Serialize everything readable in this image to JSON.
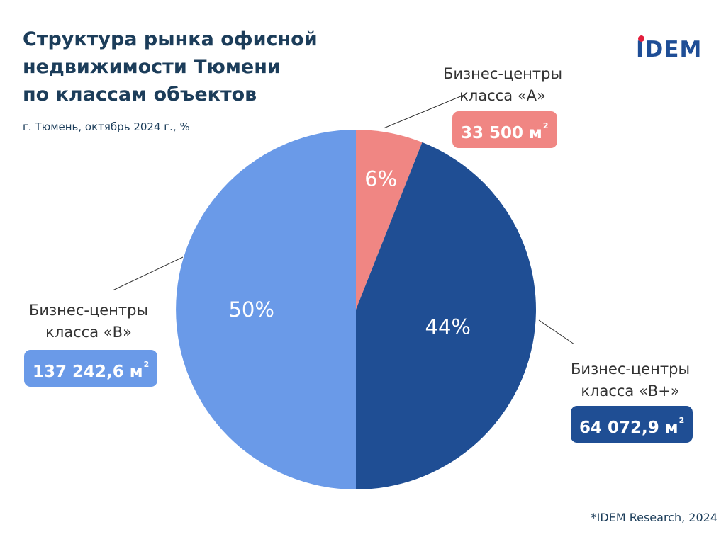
{
  "header": {
    "title_lines": [
      "Структура рынка офисной",
      "недвижимости Тюмени",
      "по классам объектов"
    ],
    "subtitle": "г. Тюмень, октябрь 2024 г., %"
  },
  "logo": {
    "text": "IDEM",
    "dot_color": "#e31e3c",
    "text_color": "#1f4e96"
  },
  "chart_data": {
    "type": "pie",
    "title": "Структура рынка офисной недвижимости Тюмени по классам объектов",
    "start_angle": "12 o'clock, clockwise",
    "slices": [
      {
        "label_line1": "Бизнес-центры",
        "label_line2": "класса «А»",
        "percent": 6,
        "percent_label": "6%",
        "area": "33 500 м",
        "area_unit_sup": "2",
        "color": "#f08683"
      },
      {
        "label_line1": "Бизнес-центры",
        "label_line2": "класса «В+»",
        "percent": 44,
        "percent_label": "44%",
        "area": "64 072,9 м",
        "area_unit_sup": "2",
        "color": "#1f4e94"
      },
      {
        "label_line1": "Бизнес-центры",
        "label_line2": "класса «В»",
        "percent": 50,
        "percent_label": "50%",
        "area": "137 242,6 м",
        "area_unit_sup": "2",
        "color": "#6a9ae8"
      }
    ]
  },
  "footer": {
    "source": "*IDEM Research, 2024"
  }
}
